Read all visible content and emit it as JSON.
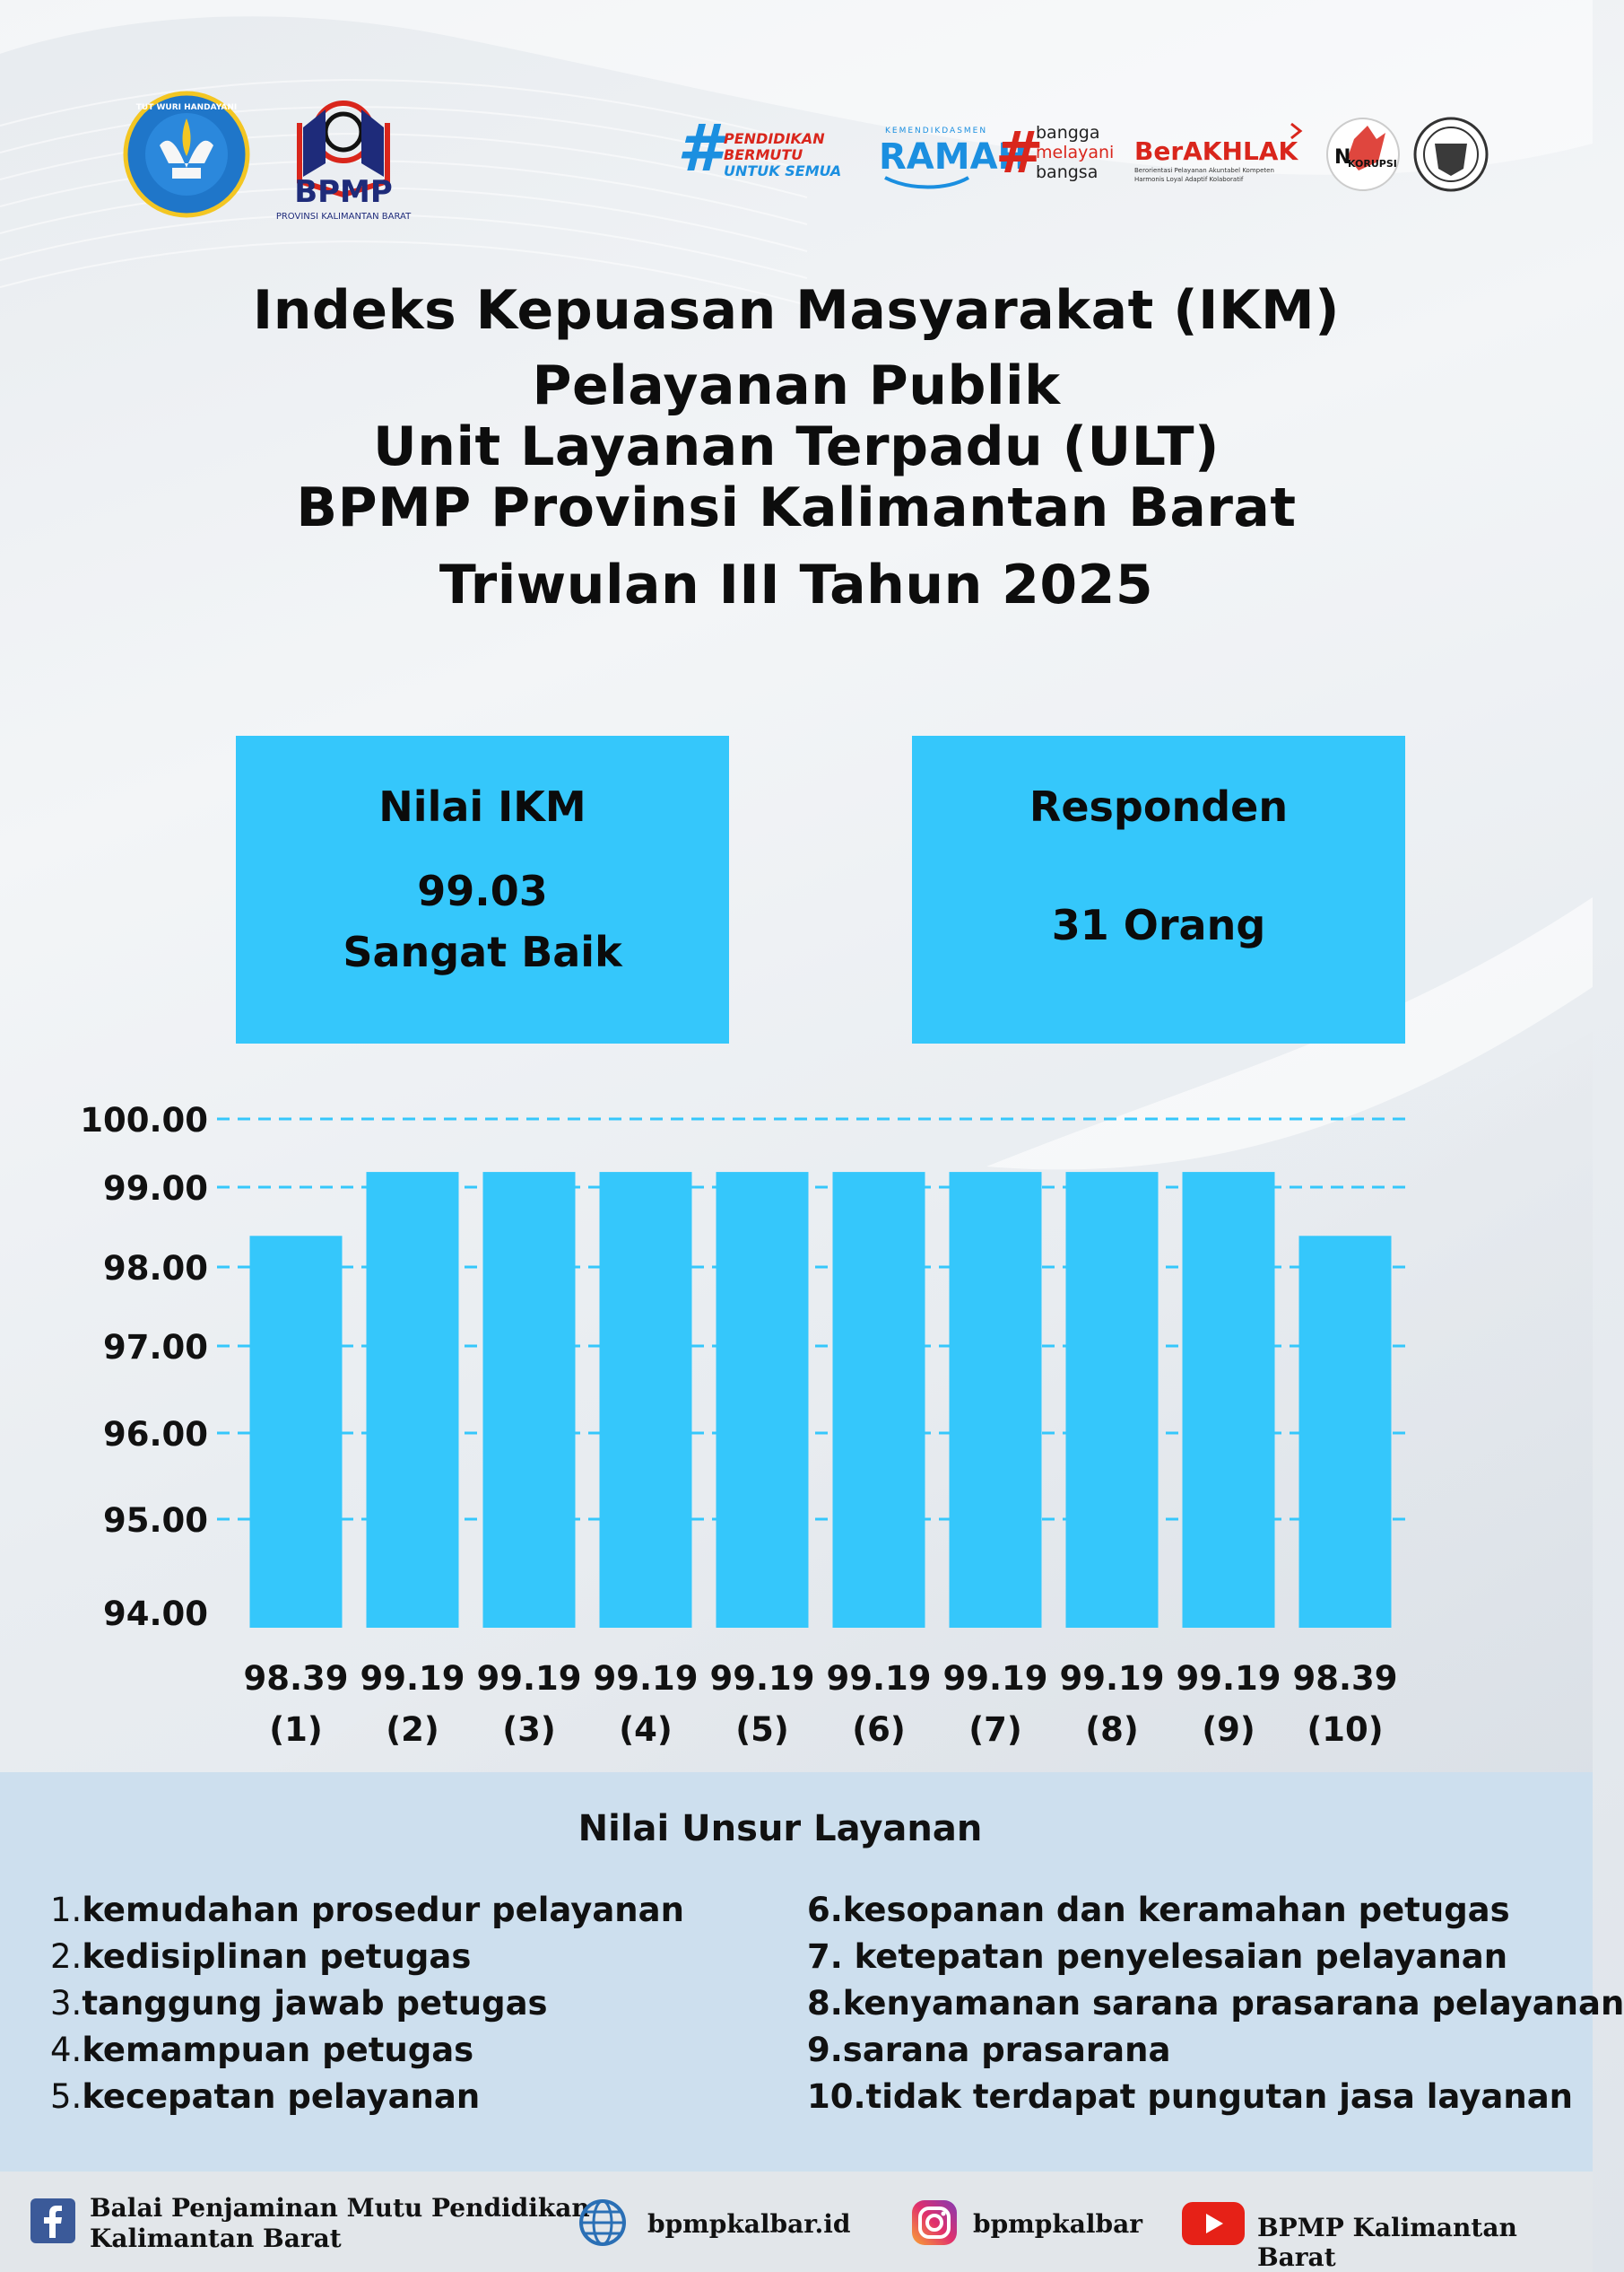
{
  "colors": {
    "accent": "#35c7fb",
    "legend_bg": "#cddfee",
    "footer_bg": "#e2e6ea",
    "grid": "#35c7fb"
  },
  "logos": {
    "tut_wuri_text": "TUT WURI HANDAYANI",
    "bpmp_text": "BPMP",
    "bpmp_sub": "PROVINSI KALIMANTAN BARAT",
    "pendidikan_text": [
      "PENDIDIKAN",
      "BERMUTU",
      "UNTUK SEMUA"
    ],
    "ramah_small": "KEMENDIKDASMEN",
    "ramah_text": "RAMAH",
    "bangga_text": [
      "bangga",
      "melayani",
      "bangsa"
    ],
    "berakhlak_text": "BerAKHLAK",
    "berakhlak_sub": [
      "Berorientasi Pelayanan Akuntabel Kompeten",
      "Harmonis Loyal Adaptif Kolaboratif"
    ],
    "no_korupsi_text": "KORUPSI"
  },
  "title": {
    "line1": "Indeks Kepuasan Masyarakat (IKM)",
    "line2": "Pelayanan Publik",
    "line3": "Unit Layanan Terpadu (ULT)",
    "line4": "BPMP Provinsi Kalimantan Barat",
    "line5": "Triwulan III Tahun 2025"
  },
  "card_ikm": {
    "label": "Nilai IKM",
    "value": "99.03",
    "category": "Sangat Baik"
  },
  "card_responden": {
    "label": "Responden",
    "value": "31 Orang"
  },
  "chart_data": {
    "type": "bar",
    "categories": [
      "(1)",
      "(2)",
      "(3)",
      "(4)",
      "(5)",
      "(6)",
      "(7)",
      "(8)",
      "(9)",
      "(10)"
    ],
    "values": [
      98.39,
      99.19,
      99.19,
      99.19,
      99.19,
      99.19,
      99.19,
      99.19,
      99.19,
      98.39
    ],
    "value_labels": [
      "98.39",
      "99.19",
      "99.19",
      "99.19",
      "99.19",
      "99.19",
      "99.19",
      "99.19",
      "99.19",
      "98.39"
    ],
    "y_ticks": [
      "100.00",
      "99.00",
      "98.00",
      "97.00",
      "96.00",
      "95.00",
      "94.00"
    ],
    "ylim": [
      94,
      100
    ],
    "grid": "dashed"
  },
  "legend": {
    "title": "Nilai Unsur Layanan",
    "left": [
      {
        "num": "1.",
        "text": "kemudahan prosedur pelayanan"
      },
      {
        "num": "2.",
        "text": "kedisiplinan petugas"
      },
      {
        "num": "3.",
        "text": "tanggung jawab petugas"
      },
      {
        "num": "4.",
        "text": "kemampuan petugas"
      },
      {
        "num": "5.",
        "text": "kecepatan pelayanan"
      }
    ],
    "right": [
      "6.kesopanan dan keramahan petugas",
      "7. ketepatan penyelesaian pelayanan",
      "8.kenyamanan sarana prasarana pelayanan",
      "9.sarana prasarana",
      "10.tidak terdapat pungutan jasa layanan"
    ]
  },
  "footer": {
    "facebook_line1": "Balai Penjaminan Mutu Pendidikan",
    "facebook_line2": "Kalimantan Barat",
    "website": "bpmpkalbar.id",
    "instagram": "bpmpkalbar",
    "youtube": "BPMP Kalimantan Barat"
  }
}
